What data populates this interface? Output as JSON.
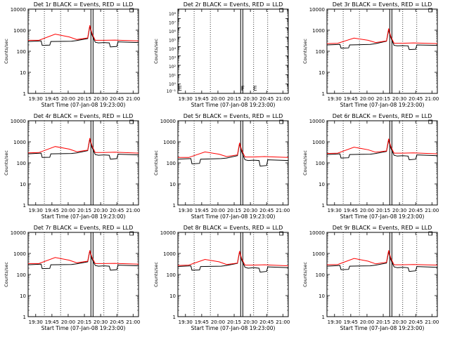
{
  "figure": {
    "xlabel": "Start Time (07-Jan-08 19:23:00)",
    "ylabel": "Counts/sec",
    "legend_text": "BLACK = Events, RED = LLD",
    "x_ticks": [
      "19:30",
      "19:45",
      "20:00",
      "20:15",
      "20:30",
      "20:45",
      "21:00"
    ],
    "y_ticks": [
      "1",
      "10",
      "100",
      "1000",
      "10000"
    ],
    "y_ticks_small": [
      "10⁻¹",
      "10⁰"
    ],
    "colors": {
      "events": "#000000",
      "lld": "#ff0000",
      "axes": "#000000",
      "background": "#ffffff"
    }
  },
  "chart_data": [
    {
      "type": "line",
      "title": "Det 1r BLACK = Events, RED = LLD",
      "xlabel": "Start Time (07-Jan-08 19:23:00)",
      "ylabel": "Counts/sec",
      "xlim": [
        "19:23",
        "21:05"
      ],
      "ylim": [
        1,
        10000
      ],
      "yscale": "log",
      "vlines": [
        "19:38",
        "19:53",
        "20:21",
        "20:23",
        "20:33",
        "20:46"
      ],
      "flags": [],
      "series": [
        {
          "name": "Events",
          "color": "#000000",
          "x_minutes": [
            0,
            12,
            13,
            20,
            21,
            40,
            45,
            55,
            57,
            59,
            62,
            65,
            70,
            75,
            76,
            82,
            83,
            102
          ],
          "y": [
            290,
            310,
            190,
            195,
            290,
            300,
            320,
            400,
            1500,
            600,
            270,
            250,
            260,
            250,
            160,
            170,
            280,
            260
          ]
        },
        {
          "name": "LLD",
          "color": "#ff0000",
          "x_minutes": [
            0,
            10,
            25,
            38,
            45,
            55,
            57,
            59,
            62,
            70,
            80,
            102
          ],
          "y": [
            330,
            330,
            650,
            480,
            360,
            430,
            1700,
            700,
            330,
            330,
            340,
            310
          ]
        }
      ]
    },
    {
      "type": "line",
      "title": "Det 2r BLACK = Events, RED = LLD",
      "xlabel": "Start Time (07-Jan-08 19:23:00)",
      "ylabel": "Counts/sec",
      "xlim": [
        "19:23",
        "21:05"
      ],
      "ylim": [
        0.1,
        100000000
      ],
      "yscale": "log",
      "y_tick_labels": [
        "10⁰",
        "10¹",
        "10²",
        "10³",
        "10⁴",
        "10⁵",
        "10⁶",
        "10⁷",
        "10⁸"
      ],
      "vlines": [
        "19:38",
        "19:53",
        "20:21",
        "20:23",
        "20:33",
        "20:46"
      ],
      "flags": [
        "E",
        "F",
        "E"
      ],
      "series": []
    },
    {
      "type": "line",
      "title": "Det 3r BLACK = Events, RED = LLD",
      "xlabel": "Start Time (07-Jan-08 19:23:00)",
      "ylabel": "Counts/sec",
      "xlim": [
        "19:23",
        "21:05"
      ],
      "ylim": [
        1,
        10000
      ],
      "yscale": "log",
      "vlines": [
        "19:38",
        "19:53",
        "20:21",
        "20:23",
        "20:33",
        "20:46"
      ],
      "flags": [],
      "series": [
        {
          "name": "Events",
          "color": "#000000",
          "x_minutes": [
            0,
            12,
            13,
            20,
            21,
            40,
            45,
            55,
            57,
            59,
            62,
            65,
            70,
            75,
            76,
            82,
            83,
            102
          ],
          "y": [
            200,
            210,
            140,
            145,
            200,
            210,
            230,
            300,
            1000,
            450,
            190,
            180,
            185,
            180,
            120,
            125,
            200,
            190
          ]
        },
        {
          "name": "LLD",
          "color": "#ff0000",
          "x_minutes": [
            0,
            10,
            25,
            38,
            45,
            55,
            57,
            59,
            62,
            70,
            80,
            102
          ],
          "y": [
            230,
            240,
            420,
            330,
            260,
            310,
            1200,
            500,
            240,
            240,
            250,
            230
          ]
        }
      ]
    },
    {
      "type": "line",
      "title": "Det 4r BLACK = Events, RED = LLD",
      "xlabel": "Start Time (07-Jan-08 19:23:00)",
      "ylabel": "Counts/sec",
      "xlim": [
        "19:23",
        "21:05"
      ],
      "ylim": [
        1,
        10000
      ],
      "yscale": "log",
      "vlines": [
        "19:38",
        "19:53",
        "20:21",
        "20:23",
        "20:33",
        "20:46"
      ],
      "flags": [],
      "series": [
        {
          "name": "Events",
          "color": "#000000",
          "x_minutes": [
            0,
            12,
            13,
            20,
            21,
            40,
            45,
            55,
            57,
            59,
            62,
            65,
            70,
            75,
            76,
            82,
            83,
            102
          ],
          "y": [
            270,
            290,
            180,
            185,
            270,
            280,
            300,
            380,
            1300,
            550,
            250,
            230,
            240,
            230,
            150,
            160,
            260,
            240
          ]
        },
        {
          "name": "LLD",
          "color": "#ff0000",
          "x_minutes": [
            0,
            10,
            25,
            38,
            45,
            55,
            57,
            59,
            62,
            70,
            80,
            102
          ],
          "y": [
            300,
            310,
            600,
            450,
            340,
            400,
            1500,
            650,
            310,
            310,
            320,
            290
          ]
        }
      ]
    },
    {
      "type": "line",
      "title": "Det 5r BLACK = Events, RED = LLD",
      "xlabel": "Start Time (07-Jan-08 19:23:00)",
      "ylabel": "Counts/sec",
      "xlim": [
        "19:23",
        "21:05"
      ],
      "ylim": [
        1,
        10000
      ],
      "yscale": "log",
      "vlines": [
        "19:38",
        "19:53",
        "20:21",
        "20:23",
        "20:33",
        "20:46"
      ],
      "flags": [],
      "series": [
        {
          "name": "Events",
          "color": "#000000",
          "x_minutes": [
            0,
            12,
            13,
            20,
            21,
            40,
            45,
            55,
            57,
            59,
            62,
            65,
            70,
            75,
            76,
            82,
            83,
            102
          ],
          "y": [
            150,
            160,
            90,
            95,
            150,
            160,
            170,
            220,
            800,
            330,
            140,
            130,
            135,
            130,
            70,
            75,
            140,
            130
          ]
        },
        {
          "name": "LLD",
          "color": "#ff0000",
          "x_minutes": [
            0,
            10,
            25,
            38,
            45,
            55,
            57,
            59,
            62,
            70,
            80,
            102
          ],
          "y": [
            180,
            180,
            330,
            260,
            200,
            240,
            900,
            400,
            190,
            190,
            200,
            180
          ]
        }
      ]
    },
    {
      "type": "line",
      "title": "Det 6r BLACK = Events, RED = LLD",
      "xlabel": "Start Time (07-Jan-08 19:23:00)",
      "ylabel": "Counts/sec",
      "xlim": [
        "19:23",
        "21:05"
      ],
      "ylim": [
        1,
        10000
      ],
      "yscale": "log",
      "vlines": [
        "19:38",
        "19:53",
        "20:21",
        "20:23",
        "20:33",
        "20:46"
      ],
      "flags": [],
      "series": [
        {
          "name": "Events",
          "color": "#000000",
          "x_minutes": [
            0,
            12,
            13,
            20,
            21,
            40,
            45,
            55,
            57,
            59,
            62,
            65,
            70,
            75,
            76,
            82,
            83,
            102
          ],
          "y": [
            250,
            270,
            170,
            175,
            250,
            260,
            280,
            350,
            1200,
            500,
            230,
            210,
            220,
            210,
            140,
            150,
            240,
            220
          ]
        },
        {
          "name": "LLD",
          "color": "#ff0000",
          "x_minutes": [
            0,
            10,
            25,
            38,
            45,
            55,
            57,
            59,
            62,
            70,
            80,
            102
          ],
          "y": [
            280,
            290,
            560,
            420,
            320,
            370,
            1400,
            600,
            290,
            290,
            300,
            270
          ]
        }
      ]
    },
    {
      "type": "line",
      "title": "Det 7r BLACK = Events, RED = LLD",
      "xlabel": "Start Time (07-Jan-08 19:23:00)",
      "ylabel": "Counts/sec",
      "xlim": [
        "19:23",
        "21:05"
      ],
      "ylim": [
        1,
        10000
      ],
      "yscale": "log",
      "vlines": [
        "19:38",
        "19:53",
        "20:21",
        "20:23",
        "20:33",
        "20:46"
      ],
      "flags": [],
      "series": [
        {
          "name": "Events",
          "color": "#000000",
          "x_minutes": [
            0,
            12,
            13,
            20,
            21,
            40,
            45,
            55,
            57,
            59,
            62,
            65,
            70,
            75,
            76,
            82,
            83,
            102
          ],
          "y": [
            290,
            310,
            190,
            195,
            290,
            300,
            320,
            400,
            1300,
            550,
            270,
            250,
            260,
            250,
            160,
            170,
            280,
            260
          ]
        },
        {
          "name": "LLD",
          "color": "#ff0000",
          "x_minutes": [
            0,
            10,
            25,
            38,
            45,
            55,
            57,
            59,
            62,
            70,
            80,
            102
          ],
          "y": [
            330,
            330,
            640,
            480,
            360,
            430,
            1400,
            650,
            330,
            330,
            340,
            310
          ]
        }
      ]
    },
    {
      "type": "line",
      "title": "Det 8r BLACK = Events, RED = LLD",
      "xlabel": "Start Time (07-Jan-08 19:23:00)",
      "ylabel": "Counts/sec",
      "xlim": [
        "19:23",
        "21:05"
      ],
      "ylim": [
        1,
        10000
      ],
      "yscale": "log",
      "vlines": [
        "19:38",
        "19:53",
        "20:21",
        "20:23",
        "20:33",
        "20:46"
      ],
      "flags": [],
      "series": [
        {
          "name": "Events",
          "color": "#000000",
          "x_minutes": [
            0,
            12,
            13,
            20,
            21,
            40,
            45,
            55,
            57,
            59,
            62,
            65,
            70,
            75,
            76,
            82,
            83,
            102
          ],
          "y": [
            240,
            260,
            160,
            165,
            240,
            250,
            270,
            340,
            1200,
            480,
            220,
            200,
            210,
            200,
            130,
            140,
            230,
            210
          ]
        },
        {
          "name": "LLD",
          "color": "#ff0000",
          "x_minutes": [
            0,
            10,
            25,
            38,
            45,
            55,
            57,
            59,
            62,
            70,
            80,
            102
          ],
          "y": [
            270,
            280,
            520,
            400,
            300,
            350,
            1300,
            560,
            280,
            280,
            290,
            260
          ]
        }
      ]
    },
    {
      "type": "line",
      "title": "Det 9r BLACK = Events, RED = LLD",
      "xlabel": "Start Time (07-Jan-08 19:23:00)",
      "ylabel": "Counts/sec",
      "xlim": [
        "19:23",
        "21:05"
      ],
      "ylim": [
        1,
        10000
      ],
      "yscale": "log",
      "vlines": [
        "19:38",
        "19:53",
        "20:21",
        "20:23",
        "20:33",
        "20:46"
      ],
      "flags": [],
      "series": [
        {
          "name": "Events",
          "color": "#000000",
          "x_minutes": [
            0,
            12,
            13,
            20,
            21,
            40,
            45,
            55,
            57,
            59,
            62,
            65,
            70,
            75,
            76,
            82,
            83,
            102
          ],
          "y": [
            250,
            270,
            170,
            175,
            250,
            260,
            280,
            350,
            1200,
            500,
            230,
            210,
            220,
            210,
            140,
            150,
            240,
            220
          ]
        },
        {
          "name": "LLD",
          "color": "#ff0000",
          "x_minutes": [
            0,
            10,
            25,
            38,
            45,
            55,
            57,
            59,
            62,
            70,
            80,
            102
          ],
          "y": [
            290,
            300,
            580,
            430,
            320,
            380,
            1400,
            600,
            290,
            290,
            300,
            280
          ]
        }
      ]
    }
  ]
}
